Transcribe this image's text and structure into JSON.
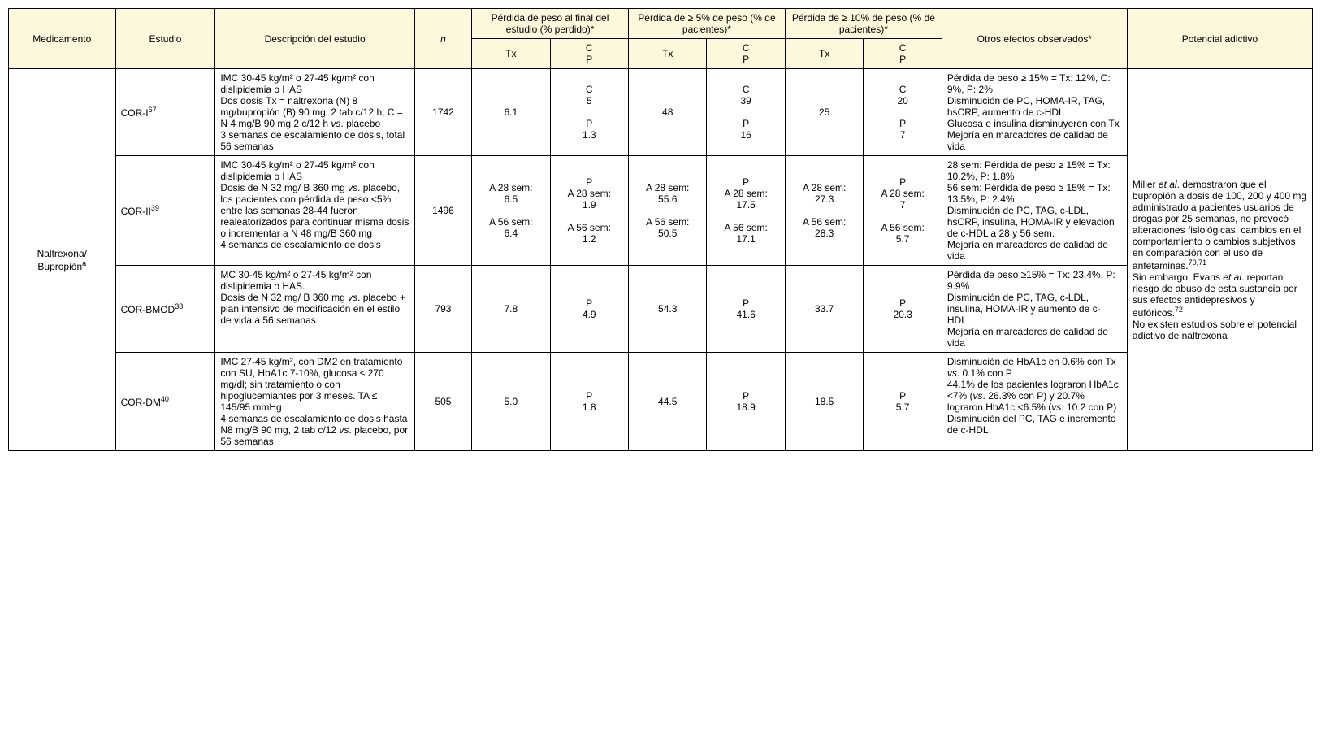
{
  "header": {
    "medicamento": "Medicamento",
    "estudio": "Estudio",
    "descripcion": "Descripción del estudio",
    "n": "n",
    "perdida_final": "Pérdida de peso al final del estudio (% perdido)*",
    "perdida_5": "Pérdida de ≥ 5% de peso (% de pacientes)*",
    "perdida_10": "Pérdida de ≥ 10% de peso (% de pacientes)*",
    "otros": "Otros efectos observados*",
    "potencial": "Potencial adictivo",
    "tx": "Tx",
    "cp": "C\nP"
  },
  "drug": {
    "name": "Naltrexona/\nBupropión",
    "sup": "a"
  },
  "rows": [
    {
      "estudio": "COR-I",
      "sup": "67",
      "desc": "IMC 30-45 kg/m² o 27-45 kg/m² con dislipidemia o HAS\nDos dosis Tx = naltrexona (N) 8 mg/bupropión (B) 90 mg, 2 tab c/12 h; C = N 4 mg/B 90 mg 2 c/12 h vs. placebo\n3 semanas de escalamiento de dosis, total 56 semanas",
      "n": "1742",
      "pf_tx": "6.1",
      "pf_cp": "C\n5\n\nP\n1.3",
      "p5_tx": "48",
      "p5_cp": "C\n39\n\nP\n16",
      "p10_tx": "25",
      "p10_cp": "C\n20\n\nP\n7",
      "otros": "Pérdida de peso ≥ 15% = Tx: 12%, C: 9%, P: 2%\nDisminución de PC, HOMA-IR, TAG, hsCRP, aumento de c-HDL\nGlucosa e insulina disminuyeron con Tx\nMejoría en marcadores de calidad de vida"
    },
    {
      "estudio": "COR-II",
      "sup": "39",
      "desc": "IMC 30-45 kg/m² o 27-45 kg/m² con dislipidemia o HAS\nDosis de N 32 mg/ B 360 mg vs. placebo, los pacientes con pérdida de peso <5% entre las semanas 28-44 fueron realeatorizados para continuar misma dosis o incrementar a N 48 mg/B 360 mg\n4 semanas de escalamiento de dosis",
      "n": "1496",
      "pf_tx": "A 28 sem:\n6.5\n\nA 56 sem:\n6.4",
      "pf_cp": "P\nA 28 sem:\n1.9\n\nA 56 sem:\n1.2",
      "p5_tx": "A 28 sem:\n55.6\n\nA 56 sem:\n50.5",
      "p5_cp": "P\nA 28 sem:\n17.5\n\nA 56 sem:\n17.1",
      "p10_tx": "A 28 sem:\n27.3\n\nA 56 sem:\n28.3",
      "p10_cp": "P\nA 28 sem:\n7\n\nA 56 sem:\n5.7",
      "otros": "28 sem: Pérdida de peso ≥ 15% = Tx: 10.2%, P: 1.8%\n56 sem: Pérdida de peso ≥ 15% = Tx: 13.5%, P: 2.4%\nDisminución de PC, TAG, c-LDL, hsCRP, insulina, HOMA-IR y elevación de c-HDL a 28 y 56 sem.\nMejoría en marcadores de calidad de vida"
    },
    {
      "estudio": "COR-BMOD",
      "sup": "38",
      "desc": "MC 30-45 kg/m² o 27-45 kg/m² con dislipidemia o HAS.\nDosis de N 32 mg/ B 360 mg vs. placebo + plan intensivo de modificación en el estilo de vida a 56 semanas",
      "n": "793",
      "pf_tx": "7.8",
      "pf_cp": "P\n4.9",
      "p5_tx": "54.3",
      "p5_cp": "P\n41.6",
      "p10_tx": "33.7",
      "p10_cp": "P\n20.3",
      "otros": "Pérdida de peso ≥15% = Tx: 23.4%, P: 9.9%\nDisminución de PC, TAG, c-LDL, insulina, HOMA-IR y aumento de c-HDL.\nMejoría en marcadores de calidad de vida"
    },
    {
      "estudio": "COR-DM",
      "sup": "40",
      "desc": "IMC 27-45 kg/m², con DM2 en tratamiento con SU, HbA1c 7-10%, glucosa ≤ 270 mg/dl; sin tratamiento o con hipoglucemiantes por 3 meses. TA ≤ 145/95 mmHg\n4 semanas de escalamiento de dosis hasta N8 mg/B 90 mg, 2 tab c/12 vs. placebo, por 56 semanas",
      "n": "505",
      "pf_tx": "5.0",
      "pf_cp": "P\n1.8",
      "p5_tx": "44.5",
      "p5_cp": "P\n18.9",
      "p10_tx": "18.5",
      "p10_cp": "P\n5.7",
      "otros": "Disminución de HbA1c en 0.6% con Tx vs. 0.1% con P\n44.1% de los pacientes lograron HbA1c <7% (vs. 26.3% con P) y 20.7% lograron HbA1c <6.5% (vs. 10.2 con P)\nDisminución del PC, TAG e incremento de c-HDL"
    }
  ],
  "potencial_html": "Miller <span class='it'>et al</span>. demostraron que el bupropión a dosis de 100, 200 y 400 mg administrado a pacientes usuarios de drogas por 25 semanas, no provocó alteraciones fisiológicas, cambios en el comportamiento o cambios subjetivos en comparación con el uso de anfetaminas.<sup>70,71</sup><br>Sin embargo, Evans <span class='it'>et al</span>. reportan riesgo de abuso de esta sustancia por sus efectos antidepresivos y eufóricos.<sup>72</sup><br>No existen estudios sobre el potencial adictivo de naltrexona",
  "colwidths": [
    "7%",
    "7%",
    "14%",
    "4%",
    "5%",
    "5%",
    "5%",
    "5%",
    "5%",
    "5%",
    "12%",
    "12%"
  ]
}
